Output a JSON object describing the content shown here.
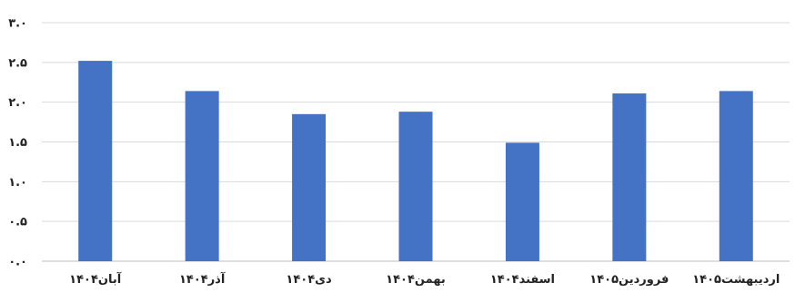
{
  "chart_data": {
    "type": "bar",
    "categories": [
      "آبان۱۴۰۴",
      "آذر۱۴۰۴",
      "دی۱۴۰۴",
      "بهمن۱۴۰۴",
      "اسفند۱۴۰۴",
      "فروردین۱۴۰۵",
      "اردیبهشت۱۴۰۵"
    ],
    "values": [
      2.52,
      2.14,
      1.85,
      1.88,
      1.49,
      2.11,
      2.14
    ],
    "yticks": [
      "۰.۰",
      "۰.۵",
      "۱.۰",
      "۱.۵",
      "۲.۰",
      "۲.۵",
      "۳.۰"
    ],
    "ylim": [
      0,
      3
    ],
    "grid": true,
    "bar_color": "#4472c4",
    "title": "",
    "xlabel": "",
    "ylabel": ""
  }
}
